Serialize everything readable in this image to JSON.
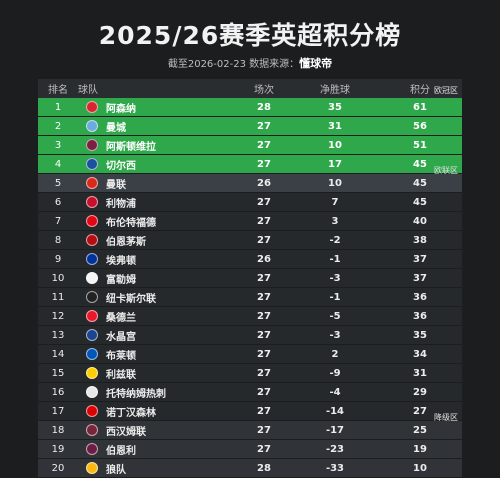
{
  "title": "2025/26赛季英超积分榜",
  "subtitle_prefix": "截至2026-02-23 数据来源：",
  "subtitle_brand": "懂球帝",
  "headers": {
    "rank": "排名",
    "team": "球队",
    "played": "场次",
    "gd": "净胜球",
    "points": "积分"
  },
  "zones": {
    "ucl": "欧冠区",
    "uel": "欧联区",
    "rel": "降级区"
  },
  "rows": [
    {
      "rank": "1",
      "team": "阿森纳",
      "played": "28",
      "gd": "35",
      "points": "61",
      "zone": "ucl",
      "color": "#d6262f"
    },
    {
      "rank": "2",
      "team": "曼城",
      "played": "27",
      "gd": "31",
      "points": "56",
      "zone": "ucl",
      "color": "#6cabdd"
    },
    {
      "rank": "3",
      "team": "阿斯顿维拉",
      "played": "27",
      "gd": "10",
      "points": "51",
      "zone": "ucl",
      "color": "#7a2043"
    },
    {
      "rank": "4",
      "team": "切尔西",
      "played": "27",
      "gd": "17",
      "points": "45",
      "zone": "ucl",
      "color": "#1b4fa0"
    },
    {
      "rank": "5",
      "team": "曼联",
      "played": "26",
      "gd": "10",
      "points": "45",
      "zone": "uel",
      "color": "#da291c"
    },
    {
      "rank": "6",
      "team": "利物浦",
      "played": "27",
      "gd": "7",
      "points": "45",
      "zone": "normal",
      "color": "#c8102e"
    },
    {
      "rank": "7",
      "team": "布伦特福德",
      "played": "27",
      "gd": "3",
      "points": "40",
      "zone": "normal",
      "color": "#e30613"
    },
    {
      "rank": "8",
      "team": "伯恩茅斯",
      "played": "27",
      "gd": "-2",
      "points": "38",
      "zone": "normal",
      "color": "#b50e12"
    },
    {
      "rank": "9",
      "team": "埃弗顿",
      "played": "26",
      "gd": "-1",
      "points": "37",
      "zone": "normal",
      "color": "#003399"
    },
    {
      "rank": "10",
      "team": "富勒姆",
      "played": "27",
      "gd": "-3",
      "points": "37",
      "zone": "normal",
      "color": "#f5f5f5"
    },
    {
      "rank": "11",
      "team": "纽卡斯尔联",
      "played": "27",
      "gd": "-1",
      "points": "36",
      "zone": "normal",
      "color": "#222222"
    },
    {
      "rank": "12",
      "team": "桑德兰",
      "played": "27",
      "gd": "-5",
      "points": "36",
      "zone": "normal",
      "color": "#eb172b"
    },
    {
      "rank": "13",
      "team": "水晶宫",
      "played": "27",
      "gd": "-3",
      "points": "35",
      "zone": "normal",
      "color": "#1b458f"
    },
    {
      "rank": "14",
      "team": "布莱顿",
      "played": "27",
      "gd": "2",
      "points": "34",
      "zone": "normal",
      "color": "#0057b8"
    },
    {
      "rank": "15",
      "team": "利兹联",
      "played": "27",
      "gd": "-9",
      "points": "31",
      "zone": "normal",
      "color": "#ffcd00"
    },
    {
      "rank": "16",
      "team": "托特纳姆热刺",
      "played": "27",
      "gd": "-4",
      "points": "29",
      "zone": "normal",
      "color": "#e8e8e8"
    },
    {
      "rank": "17",
      "team": "诺丁汉森林",
      "played": "27",
      "gd": "-14",
      "points": "27",
      "zone": "normal",
      "color": "#dd0000"
    },
    {
      "rank": "18",
      "team": "西汉姆联",
      "played": "27",
      "gd": "-17",
      "points": "25",
      "zone": "rel",
      "color": "#7a263a"
    },
    {
      "rank": "19",
      "team": "伯恩利",
      "played": "27",
      "gd": "-23",
      "points": "19",
      "zone": "rel",
      "color": "#6c1d45"
    },
    {
      "rank": "20",
      "team": "狼队",
      "played": "28",
      "gd": "-33",
      "points": "10",
      "zone": "rel",
      "color": "#fdb913"
    }
  ]
}
